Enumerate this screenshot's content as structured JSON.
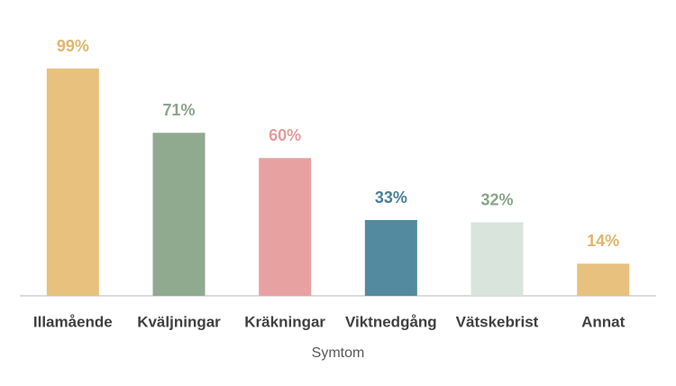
{
  "chart_data": {
    "type": "bar",
    "x_label": "Symtom",
    "categories": [
      "Illamående",
      "Kväljningar",
      "Kräkningar",
      "Viktnedgång",
      "Vätskebrist",
      "Annat"
    ],
    "values": [
      99,
      71,
      60,
      33,
      32,
      14
    ],
    "value_labels": [
      "99%",
      "71%",
      "60%",
      "33%",
      "32%",
      "14%"
    ],
    "colors": [
      "#e8c17f",
      "#8faa8e",
      "#e8a1a1",
      "#538a9f",
      "#d8e4dc",
      "#e8c17f"
    ],
    "label_colors": [
      "#e0b56c",
      "#8aa58a",
      "#e39c9c",
      "#4a7e96",
      "#8aa58a",
      "#e0b56c"
    ]
  }
}
